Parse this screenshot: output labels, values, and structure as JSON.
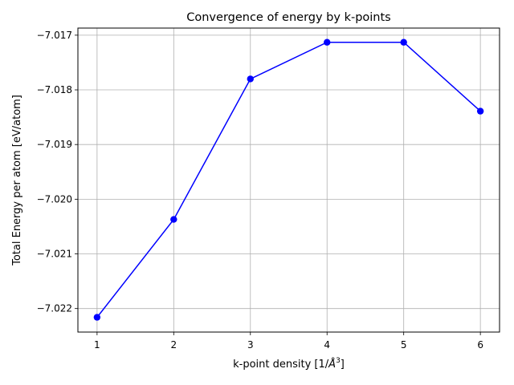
{
  "chart_data": {
    "type": "line",
    "title": "Convergence of energy by k-points",
    "xlabel": "k-point density [1/",
    "xlabel_symbol": "Å",
    "xlabel_exponent": "3",
    "xlabel_suffix": "]",
    "ylabel": "Total Energy per atom [eV/atom]",
    "x": [
      1,
      2,
      3,
      4,
      5,
      6
    ],
    "series": [
      {
        "values": [
          -7.02216,
          -7.02037,
          -7.0178,
          -7.01713,
          -7.01713,
          -7.01839
        ]
      }
    ],
    "xticks": [
      1,
      2,
      3,
      4,
      5,
      6
    ],
    "xtick_labels": [
      "1",
      "2",
      "3",
      "4",
      "5",
      "6"
    ],
    "yticks": [
      -7.022,
      -7.021,
      -7.02,
      -7.019,
      -7.018,
      -7.017
    ],
    "ytick_labels": [
      "−7.022",
      "−7.021",
      "−7.020",
      "−7.019",
      "−7.018",
      "−7.017"
    ],
    "xlim": [
      0.75,
      6.25
    ],
    "ylim": [
      -7.02243,
      -7.01687
    ],
    "grid": true,
    "colors": {
      "line": "#0000ff",
      "marker": "#0000ff",
      "grid": "#b0b0b0",
      "axes": "#000000"
    }
  }
}
